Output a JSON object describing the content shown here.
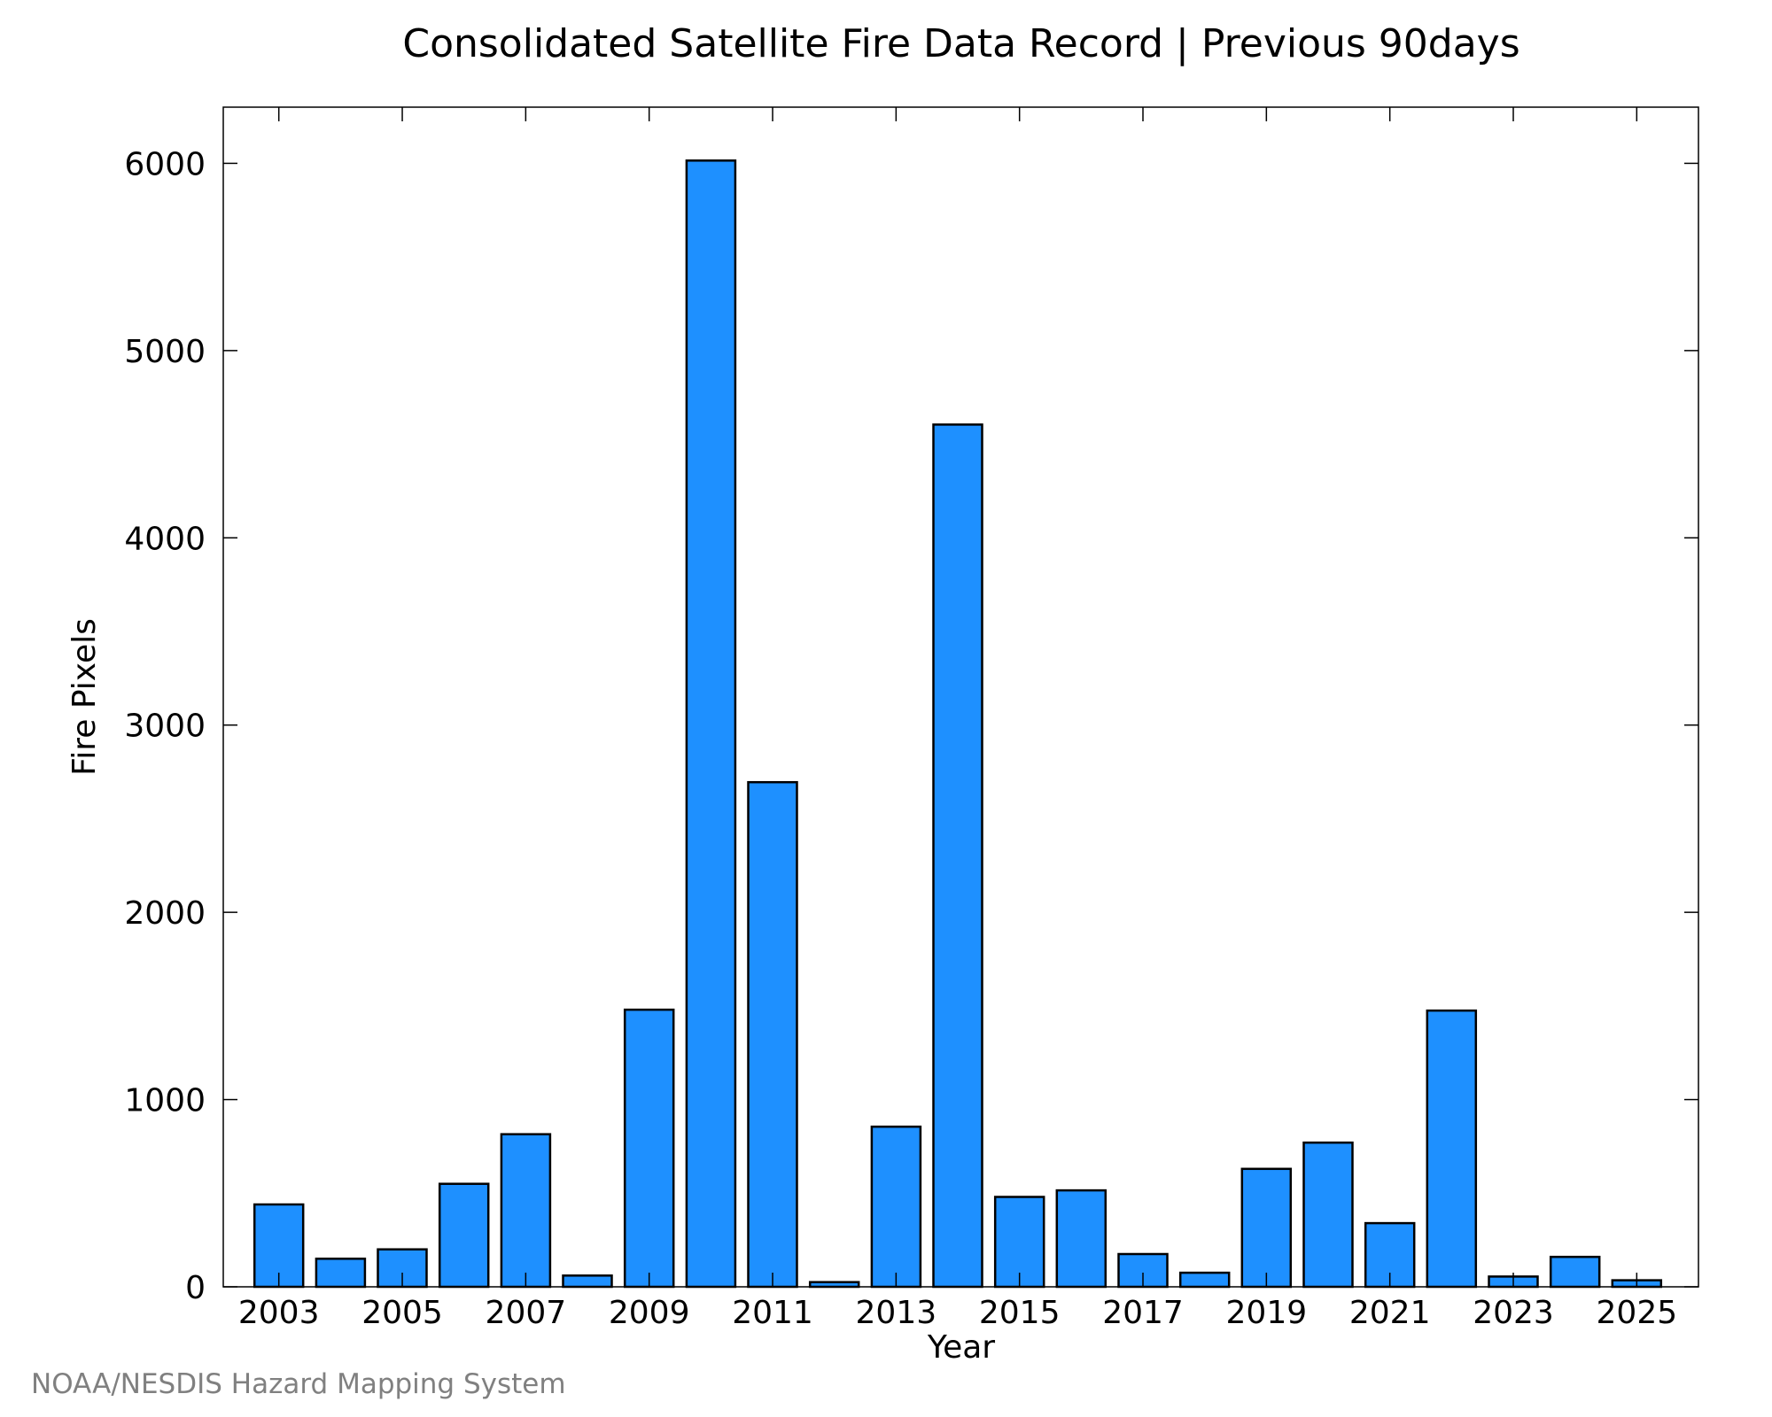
{
  "chart_data": {
    "type": "bar",
    "title": "Consolidated Satellite Fire Data Record | Previous 90days",
    "xlabel": "Year",
    "ylabel": "Fire Pixels",
    "credit": "NOAA/NESDIS Hazard Mapping System",
    "categories": [
      2003,
      2004,
      2005,
      2006,
      2007,
      2008,
      2009,
      2010,
      2011,
      2012,
      2013,
      2014,
      2015,
      2016,
      2017,
      2018,
      2019,
      2020,
      2021,
      2022,
      2023,
      2024,
      2025
    ],
    "values": [
      440,
      150,
      200,
      550,
      815,
      60,
      1480,
      6015,
      2695,
      25,
      855,
      4605,
      480,
      515,
      175,
      75,
      630,
      770,
      340,
      1475,
      55,
      160,
      35
    ],
    "x_tick_labels": [
      "2003",
      "2005",
      "2007",
      "2009",
      "2011",
      "2013",
      "2015",
      "2017",
      "2019",
      "2021",
      "2023",
      "2025"
    ],
    "y_tick_labels": [
      "0",
      "1000",
      "2000",
      "3000",
      "4000",
      "5000",
      "6000"
    ],
    "ylim": [
      0,
      6300
    ],
    "xlim": [
      2002.1,
      2026.0
    ],
    "grid": false,
    "legend": "none",
    "bar_color": "#1e90ff",
    "bar_edge_color": "#000000"
  }
}
